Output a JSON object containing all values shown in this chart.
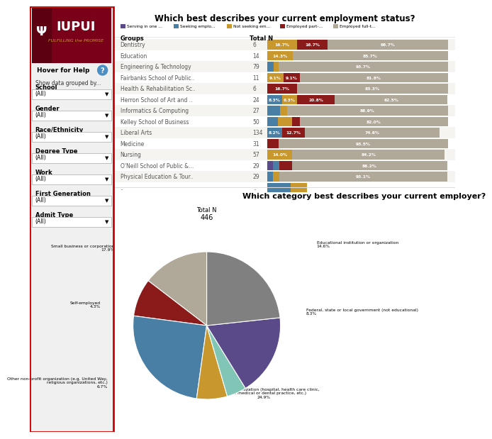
{
  "title_bar": "Which best describes your current employment status?",
  "title_pie": "Which category best describes your current employer?",
  "legend_labels": [
    "Serving in one ...",
    "Seeking emplo...",
    "Not seeking em...",
    "Employed part-...",
    "Employed full-t..."
  ],
  "legend_colors": [
    "#5b4a8a",
    "#4a7fa5",
    "#c8972e",
    "#8b1a1a",
    "#b0a899"
  ],
  "bar_categories": [
    "Dentistry",
    "Education",
    "Engineering & Technology",
    "Fairbanks School of Public..",
    "Health & Rehabilitation Sc..",
    "Herron School of Art and ..",
    "Informatics & Computing",
    "Kelley School of Business",
    "Liberal Arts",
    "Medicine",
    "Nursing",
    "O'Neill School of Public &...",
    "Physical Education & Tour..",
    ".."
  ],
  "bar_total_n": [
    "6",
    "14",
    "79",
    "11",
    "6",
    "24",
    "27",
    "50",
    "134",
    "31",
    "57",
    "29",
    "29",
    ".."
  ],
  "bar_data": {
    "Dentistry": [
      0.0,
      0.0,
      16.7,
      16.7,
      66.7
    ],
    "Education": [
      0.0,
      0.0,
      14.3,
      0.0,
      85.7
    ],
    "Engineering & Technology": [
      0.0,
      3.8,
      2.5,
      0.0,
      93.7
    ],
    "Fairbanks School of Public..": [
      0.0,
      0.0,
      9.1,
      9.1,
      81.8
    ],
    "Health & Rehabilitation Sc..": [
      0.0,
      0.0,
      0.0,
      16.7,
      83.3
    ],
    "Herron School of Art and ..": [
      0.0,
      8.3,
      8.3,
      20.8,
      62.5
    ],
    "Informatics & Computing": [
      0.0,
      7.4,
      3.7,
      0.0,
      88.9
    ],
    "Kelley School of Business": [
      0.0,
      6.0,
      8.0,
      4.0,
      82.0
    ],
    "Liberal Arts": [
      0.0,
      8.2,
      0.0,
      12.7,
      74.6
    ],
    "Medicine": [
      0.0,
      0.0,
      0.0,
      6.5,
      93.5
    ],
    "Nursing": [
      0.0,
      0.0,
      14.0,
      0.0,
      84.2
    ],
    "O'Neill School of Public &...": [
      3.4,
      3.4,
      0.0,
      6.9,
      86.2
    ],
    "Physical Education & Tour..": [
      0.0,
      3.4,
      3.4,
      0.0,
      93.1
    ],
    "..": [
      0.0,
      0.0,
      0.0,
      0.0,
      0.0
    ]
  },
  "bar_show_labels": {
    "Dentistry": [
      "",
      "",
      "16.7%",
      "16.7%",
      "66.7%"
    ],
    "Education": [
      "",
      "",
      "14.3%",
      "",
      "85.7%"
    ],
    "Engineering & Technology": [
      "",
      "",
      "",
      "",
      "93.7%"
    ],
    "Fairbanks School of Public..": [
      "",
      "",
      "9.1%",
      "9.1%",
      "81.8%"
    ],
    "Health & Rehabilitation Sc..": [
      "",
      "",
      "",
      "16.7%",
      "83.3%"
    ],
    "Herron School of Art and ..": [
      "",
      "8.3%",
      "8.3%",
      "20.8%",
      "62.5%"
    ],
    "Informatics & Computing": [
      "",
      "",
      "",
      "",
      "88.9%"
    ],
    "Kelley School of Business": [
      "",
      "",
      "",
      "",
      "82.0%"
    ],
    "Liberal Arts": [
      "",
      "8.2%",
      "",
      "12.7%",
      "74.6%"
    ],
    "Medicine": [
      "",
      "",
      "",
      "",
      "93.5%"
    ],
    "Nursing": [
      "",
      "",
      "14.0%",
      "",
      "84.2%"
    ],
    "O'Neill School of Public &...": [
      "",
      "",
      "",
      "",
      "86.2%"
    ],
    "Physical Education & Tour..": [
      "",
      "",
      "",
      "",
      "93.1%"
    ],
    "..": [
      "",
      "",
      "",
      "",
      ""
    ]
  },
  "pie_values": [
    14.6,
    8.3,
    24.9,
    6.7,
    4.3,
    17.9,
    23.3
  ],
  "pie_colors": [
    "#b0a899",
    "#8b1a1a",
    "#4a7fa5",
    "#c8972e",
    "#80c5b5",
    "#5b4a8a",
    "#808080"
  ],
  "pie_short_labels": [
    "Educational institution or organization\n14.6%",
    "Federal, state or local government (not educational)\n8.3%",
    "Healthcare organization (hospital, health care clinic, private medical or dental practice, etc.)\n24.9%",
    "Other non-profit organization (e.g. United Way, religious organizations, etc.)\n6.7%",
    "Self-employed\n4.3%",
    "Small business or corporation\n17.9%",
    ""
  ],
  "pie_total_n": "446",
  "sidebar_labels": [
    "Show data grouped by...",
    "School",
    "Gender",
    "Race/Ethnicity",
    "Degree Type",
    "Work",
    "First Generation",
    "Admit Type"
  ],
  "iupui_red": "#7a0019",
  "iupui_dark_red": "#5c0011"
}
